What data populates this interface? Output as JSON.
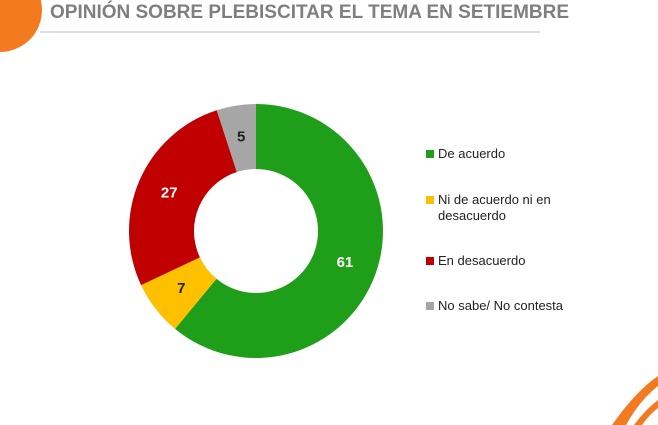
{
  "chart_data": {
    "type": "pie",
    "title": "OPINIÓN SOBRE PLEBISCITAR EL TEMA EN SETIEMBRE",
    "categories": [
      "De acuerdo",
      "Ni de acuerdo ni en desacuerdo",
      "En desacuerdo",
      "No sabe/ No contesta"
    ],
    "values": [
      61,
      7,
      27,
      5
    ],
    "colors": [
      "#1f9e1a",
      "#ffc000",
      "#c00000",
      "#a6a6a6"
    ]
  }
}
